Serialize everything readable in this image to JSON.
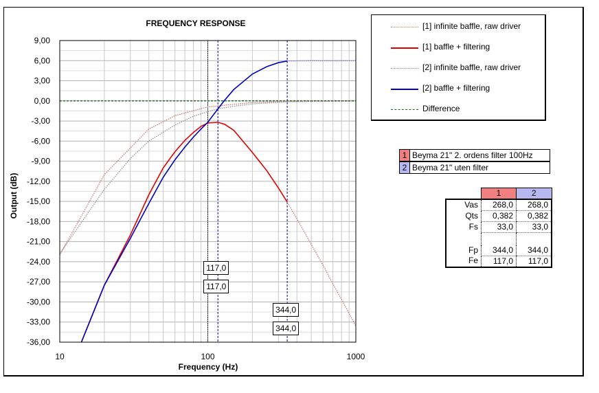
{
  "chart_data": {
    "type": "line",
    "title": "FREQUENCY RESPONSE",
    "xlabel": "Frequency (Hz)",
    "ylabel": "Output (dB)",
    "xscale": "log",
    "xlim": [
      10,
      1000
    ],
    "ylim": [
      -36,
      9
    ],
    "x_ticks": [
      "10",
      "100",
      "1000"
    ],
    "y_ticks": [
      "9,00",
      "6,00",
      "3,00",
      "0,00",
      "-3,00",
      "-6,00",
      "-9,00",
      "-12,00",
      "-15,00",
      "-18,00",
      "-21,00",
      "-24,00",
      "-27,00",
      "-30,00",
      "-33,00",
      "-36,00"
    ],
    "grid": true,
    "legend_position": "top-right",
    "series": [
      {
        "name": "[1] infinite baffle, raw driver",
        "color": "#c87070",
        "style": "dotted",
        "x": [
          10,
          20,
          40,
          60,
          100,
          200,
          344,
          400,
          600,
          1000
        ],
        "y": [
          -23.0,
          -11.0,
          -4.2,
          -2.2,
          -0.9,
          -0.25,
          -0.05,
          -0.04,
          -0.02,
          -0.01
        ]
      },
      {
        "name": "[1] baffle + filtering",
        "color": "#e00000",
        "style": "solid",
        "x": [
          14,
          20,
          30,
          40,
          50,
          60,
          70,
          80,
          90,
          100,
          117,
          130,
          150,
          200,
          250,
          300,
          344
        ],
        "y": [
          -36.0,
          -27.5,
          -20.0,
          -14.0,
          -10.0,
          -7.6,
          -5.9,
          -4.7,
          -3.8,
          -3.3,
          -3.2,
          -3.5,
          -4.4,
          -7.7,
          -10.4,
          -13.0,
          -15.1
        ]
      },
      {
        "name": "[1] baffle + filtering (beyond Fe)",
        "color": "#c87070",
        "style": "dotted",
        "x": [
          344,
          400,
          500,
          600,
          700,
          800,
          1000
        ],
        "y": [
          -15.1,
          -17.6,
          -21.4,
          -24.5,
          -27.3,
          -29.6,
          -33.6
        ]
      },
      {
        "name": "[2] infinite baffle, raw driver",
        "color": "#909090",
        "style": "dotted",
        "x": [
          10,
          20,
          30,
          40,
          60,
          80,
          100,
          117,
          150,
          200,
          344,
          500,
          1000
        ],
        "y": [
          -22.8,
          -13.2,
          -8.6,
          -6.0,
          -3.6,
          -2.3,
          -1.6,
          -1.2,
          -0.8,
          -0.45,
          -0.15,
          -0.07,
          -0.02
        ]
      },
      {
        "name": "[2] baffle + filtering",
        "color": "#0000c0",
        "style": "solid",
        "x": [
          14,
          20,
          30,
          40,
          50,
          60,
          70,
          80,
          90,
          100,
          117,
          130,
          150,
          200,
          250,
          300,
          344
        ],
        "y": [
          -36.0,
          -27.5,
          -20.5,
          -15.3,
          -11.4,
          -8.8,
          -6.9,
          -5.4,
          -4.2,
          -3.2,
          -1.2,
          0.1,
          1.7,
          4.0,
          5.1,
          5.7,
          5.95
        ]
      },
      {
        "name": "[2] baffle + filtering (beyond Fe)",
        "color": "#7070d0",
        "style": "dotted",
        "x": [
          344,
          500,
          700,
          1000
        ],
        "y": [
          5.95,
          6.0,
          6.0,
          6.0
        ]
      },
      {
        "name": "Difference",
        "color": "#206020",
        "style": "dashed",
        "x": [
          10,
          1000
        ],
        "y": [
          0.0,
          0.0
        ]
      }
    ],
    "vlines": [
      {
        "x": 100,
        "color": "#000000",
        "style": "dotted"
      },
      {
        "x": 117,
        "color": "#0000a0",
        "style": "dashed"
      },
      {
        "x": 344,
        "color": "#0000a0",
        "style": "dashed"
      }
    ],
    "annotations": [
      {
        "text": "117,0",
        "x": 117,
        "y": -24.9
      },
      {
        "text": "117,0",
        "x": 117,
        "y": -27.7
      },
      {
        "text": "344,0",
        "x": 344,
        "y": -31.2
      },
      {
        "text": "344,0",
        "x": 344,
        "y": -34.0
      }
    ]
  },
  "legend": [
    {
      "label": "[1] infinite baffle, raw driver",
      "color": "#c87070",
      "style": "dotted"
    },
    {
      "label": "[1] baffle + filtering",
      "color": "#e00000",
      "style": "solid"
    },
    {
      "label": "[2] infinite baffle, raw driver",
      "color": "#909090",
      "style": "dotted"
    },
    {
      "label": "[2] baffle + filtering",
      "color": "#0000c0",
      "style": "solid"
    },
    {
      "label": "Difference",
      "color": "#206020",
      "style": "dashed"
    }
  ],
  "drivers": [
    {
      "num": "1",
      "name": "Beyma 21\" 2. ordens filter 100Hz",
      "color": "#f08080"
    },
    {
      "num": "2",
      "name": "Beyma 21\" uten filter",
      "color": "#b8b8f0"
    }
  ],
  "params": {
    "headers": [
      "1",
      "2"
    ],
    "rows": [
      {
        "label": "Vas",
        "v1": "268,0",
        "v2": "268,0"
      },
      {
        "label": "Qts",
        "v1": "0,382",
        "v2": "0,382"
      },
      {
        "label": "Fs",
        "v1": "33,0",
        "v2": "33,0"
      }
    ],
    "rows2": [
      {
        "label": "Fp",
        "v1": "344,0",
        "v2": "344,0"
      },
      {
        "label": "Fe",
        "v1": "117,0",
        "v2": "117,0"
      }
    ]
  }
}
